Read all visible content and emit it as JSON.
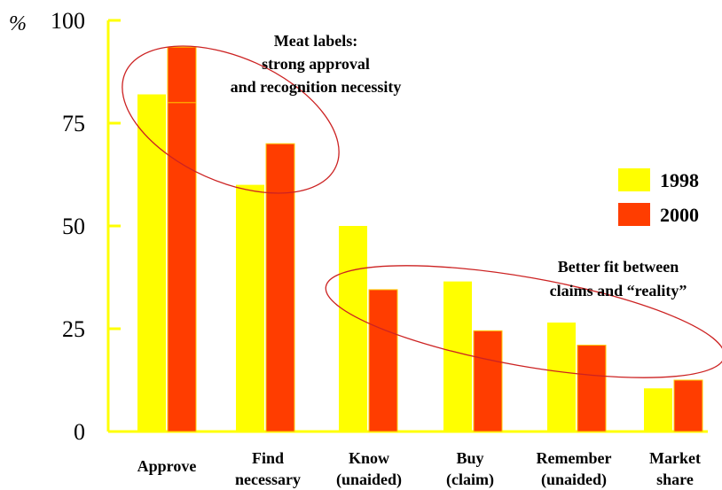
{
  "chart_data": {
    "type": "bar",
    "ylabel": "%",
    "ylim": [
      0,
      100
    ],
    "yticks": [
      "0",
      "25",
      "50",
      "75",
      "100"
    ],
    "categories": [
      [
        "Approve"
      ],
      [
        "Find",
        "necessary"
      ],
      [
        "Know",
        "(unaided)"
      ],
      [
        "Buy",
        "(claim)"
      ],
      [
        "Remember",
        "(unaided)"
      ],
      [
        "Market",
        "share"
      ]
    ],
    "series": [
      {
        "name": "1998",
        "color": "#ffff00",
        "values": [
          82,
          60,
          50,
          36.5,
          26.5,
          10.5
        ]
      },
      {
        "name": "2000",
        "color": "#ff3d00",
        "values": [
          80,
          70,
          34.5,
          24.5,
          21,
          12.5
        ]
      }
    ],
    "overlay_bar": {
      "series": "2000",
      "category": "Approve",
      "value": 93.5
    },
    "annotations": [
      {
        "lines": [
          "Meat labels:",
          "strong approval",
          "and recognition necessity"
        ]
      },
      {
        "lines": [
          "Better fit between",
          "claims and “reality”"
        ]
      }
    ],
    "legend_placement": "right",
    "grid": false,
    "axis_color": "#ffff00",
    "ellipse_color": "#cc2222"
  }
}
